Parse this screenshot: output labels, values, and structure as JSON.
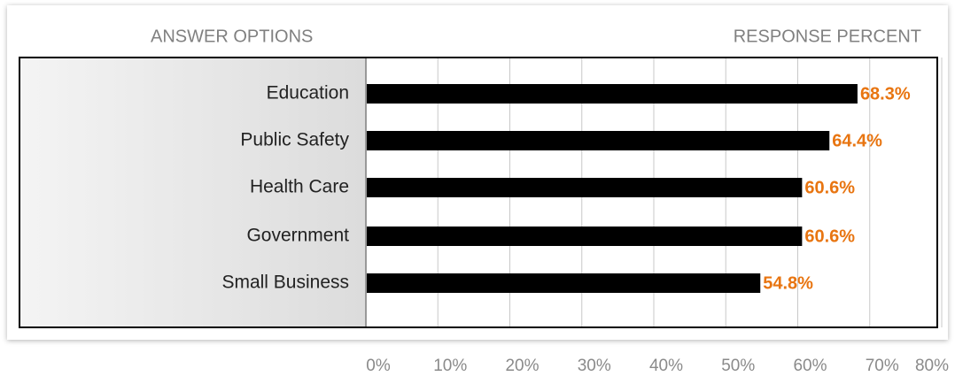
{
  "chart_data": {
    "type": "barh",
    "column_headers": [
      "ANSWER OPTIONS",
      "RESPONSE PERCENT"
    ],
    "categories": [
      "Education",
      "Public Safety",
      "Health Care",
      "Government",
      "Small Business"
    ],
    "values": [
      68.3,
      64.4,
      60.6,
      60.6,
      54.8
    ],
    "value_labels": [
      "68.3%",
      "64.4%",
      "60.6%",
      "60.6%",
      "54.8%"
    ],
    "color": "#000000",
    "label_color": "#e87511",
    "xlim": [
      0,
      80
    ],
    "xticks": [
      {
        "value": 0,
        "label": "0%"
      },
      {
        "value": 10,
        "label": "10%"
      },
      {
        "value": 20,
        "label": "20%"
      },
      {
        "value": 30,
        "label": "30%"
      },
      {
        "value": 40,
        "label": "40%"
      },
      {
        "value": 50,
        "label": "50%"
      },
      {
        "value": 60,
        "label": "60%"
      },
      {
        "value": 70,
        "label": "70%"
      },
      {
        "value": 80,
        "label": "80%"
      }
    ],
    "grid": true
  }
}
